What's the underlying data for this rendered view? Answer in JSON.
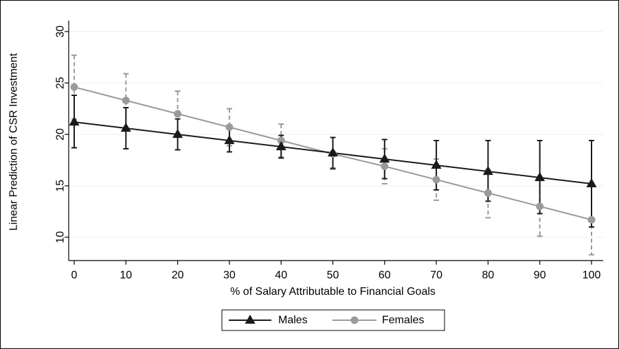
{
  "chart_data": {
    "type": "line",
    "title": "",
    "xlabel": "% of Salary Attributable to Financial Goals",
    "ylabel": "Linear Prediction of CSR Investment",
    "x": [
      0,
      10,
      20,
      30,
      40,
      50,
      60,
      70,
      80,
      90,
      100
    ],
    "x_ticks": [
      "0",
      "10",
      "20",
      "30",
      "40",
      "50",
      "60",
      "70",
      "80",
      "90",
      "100"
    ],
    "y_ticks": [
      "10",
      "15",
      "20",
      "25",
      "30"
    ],
    "xlim": [
      0,
      100
    ],
    "ylim": [
      8,
      30
    ],
    "grid": "horizontal",
    "legend_position": "bottom",
    "series": [
      {
        "name": "Males",
        "color": "#1a1a1a",
        "marker": "triangle",
        "error_style": "solid",
        "values": [
          21.2,
          20.6,
          20.0,
          19.4,
          18.8,
          18.2,
          17.6,
          17.0,
          16.4,
          15.8,
          15.2
        ],
        "lower": [
          18.7,
          18.6,
          18.5,
          18.3,
          17.7,
          16.7,
          15.7,
          14.6,
          13.5,
          12.3,
          11.0
        ],
        "upper": [
          23.8,
          22.6,
          21.5,
          20.5,
          19.9,
          19.7,
          19.5,
          19.4,
          19.4,
          19.4,
          19.4
        ]
      },
      {
        "name": "Females",
        "color": "#9a9a9a",
        "marker": "circle",
        "error_style": "dashed",
        "values": [
          24.6,
          23.3,
          22.0,
          20.7,
          19.4,
          18.1,
          16.9,
          15.6,
          14.3,
          13.0,
          11.7
        ],
        "lower": [
          21.5,
          20.7,
          19.8,
          18.9,
          17.8,
          16.6,
          15.2,
          13.6,
          11.9,
          10.1,
          8.3
        ],
        "upper": [
          27.7,
          25.9,
          24.2,
          22.5,
          21.0,
          19.7,
          18.6,
          17.6,
          16.6,
          15.9,
          15.2
        ]
      }
    ]
  }
}
